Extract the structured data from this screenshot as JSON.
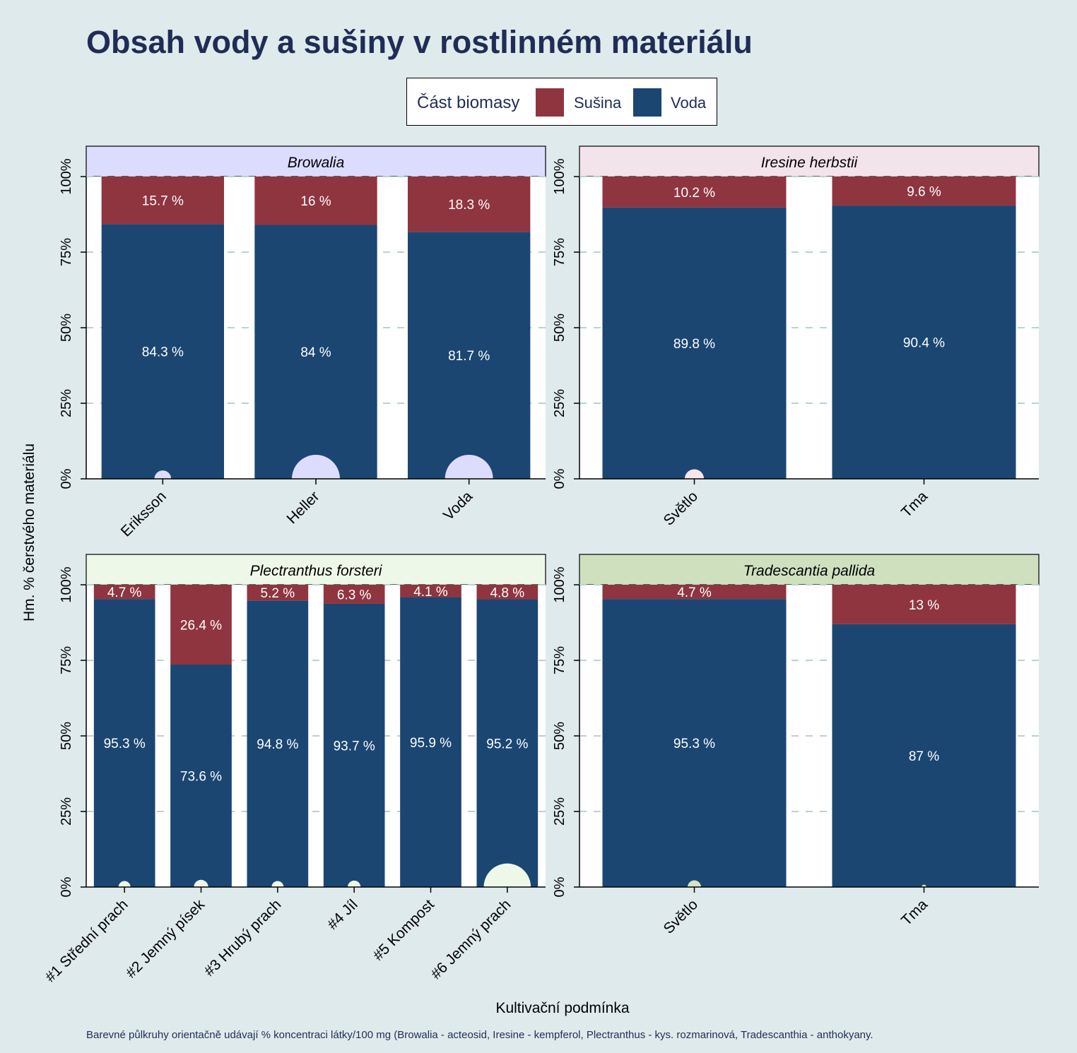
{
  "title": "Obsah vody a sušiny v rostlinném materiálu",
  "legend": {
    "title": "Část biomasy",
    "items": [
      {
        "label": "Sušina",
        "color": "#8f3540"
      },
      {
        "label": "Voda",
        "color": "#1b4671"
      }
    ]
  },
  "y_axis_label": "Hm. % čerstvého materiálu",
  "x_axis_label": "Kultivační podmínka",
  "footnote": "Barevné půlkruhy orientačně udávají % koncentraci látky/100 mg (Browalia - acteosid, Iresine - kempferol, Plectranthus - kys. rozmarinová, Tradescanthia - anthokyany.",
  "colors": {
    "susina": "#8f3540",
    "voda": "#1b4671",
    "background": "#dfeaec",
    "panel": "#ffffff",
    "grid": "#b7d3d2",
    "label_text": "#ffffff"
  },
  "chart_data": [
    {
      "type": "bar",
      "stacked": true,
      "panel": "Browalia",
      "strip_color": "#dcdcfe",
      "marker_color": "#dcdcfe",
      "categories": [
        "Eriksson",
        "Heller",
        "Voda"
      ],
      "series": [
        {
          "name": "Voda",
          "values": [
            84.3,
            84,
            81.7
          ],
          "labels": [
            "84.3 %",
            "84 %",
            "81.7 %"
          ]
        },
        {
          "name": "Sušina",
          "values": [
            15.7,
            16,
            18.3
          ],
          "labels": [
            "15.7 %",
            "16 %",
            "18.3 %"
          ]
        }
      ],
      "semicircle_size": [
        0.35,
        1.0,
        1.0
      ],
      "ylim": [
        0,
        100
      ],
      "yticks": [
        "0%",
        "25%",
        "50%",
        "75%",
        "100%"
      ]
    },
    {
      "type": "bar",
      "stacked": true,
      "panel": "Iresine herbstii",
      "strip_color": "#f3e3ea",
      "marker_color": "#f8e6ee",
      "categories": [
        "Světlo",
        "Tma"
      ],
      "series": [
        {
          "name": "Voda",
          "values": [
            89.8,
            90.4
          ],
          "labels": [
            "89.8 %",
            "90.4 %"
          ]
        },
        {
          "name": "Sušina",
          "values": [
            10.2,
            9.6
          ],
          "labels": [
            "10.2 %",
            "9.6 %"
          ]
        }
      ],
      "semicircle_size": [
        0.4,
        0
      ],
      "ylim": [
        0,
        100
      ],
      "yticks": [
        "0%",
        "25%",
        "50%",
        "75%",
        "100%"
      ]
    },
    {
      "type": "bar",
      "stacked": true,
      "panel": "Plectranthus forsteri",
      "strip_color": "#eef8e8",
      "marker_color": "#eef8e8",
      "categories": [
        "#1 Střední prach",
        "#2 Jemný písek",
        "#3 Hrubý prach",
        "#4 Jíl",
        "#5 Kompost",
        "#6 Jemný prach"
      ],
      "series": [
        {
          "name": "Voda",
          "values": [
            95.3,
            73.6,
            94.8,
            93.7,
            95.9,
            95.2
          ],
          "labels": [
            "95.3 %",
            "73.6 %",
            "94.8 %",
            "93.7 %",
            "95.9 %",
            "95.2 %"
          ]
        },
        {
          "name": "Sušina",
          "values": [
            4.7,
            26.4,
            5.2,
            6.3,
            4.1,
            4.8
          ],
          "labels": [
            "4.7 %",
            "26.4 %",
            "5.2 %",
            "6.3 %",
            "4.1 %",
            "4.8 %"
          ]
        }
      ],
      "semicircle_size": [
        0.25,
        0.3,
        0.25,
        0.27,
        0,
        0.98
      ],
      "ylim": [
        0,
        100
      ],
      "yticks": [
        "0%",
        "25%",
        "50%",
        "75%",
        "100%"
      ]
    },
    {
      "type": "bar",
      "stacked": true,
      "panel": "Tradescantia pallida",
      "strip_color": "#cfe0bf",
      "marker_color": "#d4e4c4",
      "categories": [
        "Světlo",
        "Tma"
      ],
      "series": [
        {
          "name": "Voda",
          "values": [
            95.3,
            87
          ],
          "labels": [
            "95.3 %",
            "87 %"
          ]
        },
        {
          "name": "Sušina",
          "values": [
            4.7,
            13
          ],
          "labels": [
            "4.7 %",
            "13 %"
          ]
        }
      ],
      "semicircle_size": [
        0.28,
        0.1
      ],
      "ylim": [
        0,
        100
      ],
      "yticks": [
        "0%",
        "25%",
        "50%",
        "75%",
        "100%"
      ]
    }
  ]
}
